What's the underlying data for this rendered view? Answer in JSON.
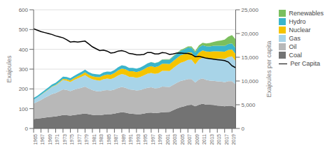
{
  "chart_data": {
    "type": "area",
    "stacked": true,
    "x": [
      1965,
      1966,
      1967,
      1968,
      1969,
      1970,
      1971,
      1972,
      1973,
      1974,
      1975,
      1976,
      1977,
      1978,
      1979,
      1980,
      1981,
      1982,
      1983,
      1984,
      1985,
      1986,
      1987,
      1988,
      1989,
      1990,
      1991,
      1992,
      1993,
      1994,
      1995,
      1996,
      1997,
      1998,
      1999,
      2000,
      2001,
      2002,
      2003,
      2004,
      2005,
      2006,
      2007,
      2008,
      2009,
      2010,
      2011,
      2012,
      2013,
      2014,
      2015,
      2016,
      2017,
      2018,
      2019,
      2020
    ],
    "series": [
      {
        "name": "Coal",
        "color": "#737373",
        "values": [
          48,
          50,
          52,
          55,
          57,
          59,
          61,
          64,
          68,
          67,
          65,
          68,
          71,
          73,
          76,
          72,
          69,
          67,
          67,
          70,
          72,
          72,
          75,
          79,
          82,
          80,
          76,
          74,
          72,
          72,
          75,
          79,
          80,
          78,
          79,
          82,
          83,
          84,
          93,
          101,
          108,
          112,
          118,
          120,
          112,
          120,
          125,
          120,
          120,
          119,
          116,
          115,
          112,
          115,
          115,
          105
        ]
      },
      {
        "name": "Oil",
        "color": "#b8b8b8",
        "values": [
          78,
          85,
          92,
          100,
          107,
          115,
          118,
          124,
          130,
          128,
          124,
          128,
          130,
          133,
          136,
          130,
          125,
          122,
          120,
          122,
          122,
          120,
          122,
          126,
          128,
          126,
          122,
          122,
          120,
          122,
          125,
          127,
          128,
          125,
          126,
          130,
          128,
          126,
          128,
          130,
          132,
          132,
          132,
          130,
          120,
          128,
          128,
          125,
          122,
          122,
          122,
          122,
          122,
          124,
          124,
          118
        ]
      },
      {
        "name": "Gas",
        "color": "#a8d4e8",
        "values": [
          20,
          22,
          25,
          28,
          32,
          36,
          39,
          43,
          47,
          47,
          46,
          49,
          52,
          55,
          58,
          56,
          55,
          55,
          55,
          57,
          58,
          58,
          60,
          63,
          65,
          65,
          63,
          64,
          64,
          66,
          68,
          71,
          73,
          73,
          75,
          79,
          80,
          80,
          84,
          88,
          92,
          94,
          97,
          98,
          92,
          100,
          105,
          108,
          110,
          112,
          115,
          116,
          118,
          122,
          125,
          118
        ]
      },
      {
        "name": "Nuclear",
        "color": "#f5c400",
        "values": [
          0,
          0,
          1,
          1,
          2,
          2,
          3,
          4,
          6,
          7,
          8,
          9,
          11,
          12,
          14,
          14,
          15,
          16,
          17,
          19,
          21,
          22,
          24,
          26,
          28,
          28,
          28,
          29,
          29,
          30,
          31,
          33,
          34,
          34,
          35,
          36,
          36,
          36,
          36,
          37,
          38,
          38,
          38,
          36,
          35,
          36,
          36,
          36,
          36,
          37,
          37,
          36,
          36,
          36,
          36,
          35
        ]
      },
      {
        "name": "Hydro",
        "color": "#3bb5cc",
        "values": [
          8,
          8,
          9,
          9,
          9,
          10,
          10,
          11,
          11,
          11,
          11,
          12,
          12,
          13,
          13,
          13,
          13,
          14,
          14,
          15,
          15,
          15,
          15,
          16,
          16,
          17,
          17,
          17,
          18,
          18,
          19,
          19,
          20,
          20,
          20,
          21,
          21,
          22,
          22,
          23,
          23,
          24,
          24,
          24,
          25,
          26,
          27,
          27,
          27,
          28,
          28,
          29,
          29,
          30,
          30,
          30
        ]
      },
      {
        "name": "Renewables",
        "color": "#7bbf5e",
        "values": [
          0,
          0,
          0,
          0,
          0,
          0,
          0,
          0,
          0,
          0,
          0,
          0,
          0,
          0,
          0,
          0,
          0,
          0,
          0,
          0,
          0,
          0,
          0,
          0,
          0,
          0,
          0,
          0,
          0,
          0,
          0,
          0,
          1,
          1,
          1,
          1,
          2,
          2,
          3,
          3,
          4,
          5,
          6,
          7,
          8,
          10,
          12,
          14,
          17,
          20,
          24,
          27,
          32,
          37,
          42,
          44
        ]
      },
      {
        "name": "Per Capita",
        "type": "line",
        "axis": "y2",
        "color": "#000000",
        "values": [
          21000,
          20700,
          20400,
          20200,
          20000,
          19800,
          19500,
          19300,
          19100,
          18700,
          18200,
          18300,
          18200,
          18300,
          18400,
          17800,
          17200,
          16800,
          16400,
          16500,
          16300,
          15900,
          16000,
          16300,
          16400,
          16200,
          15800,
          15700,
          15500,
          15500,
          15600,
          16000,
          16000,
          15700,
          15700,
          16000,
          15900,
          15600,
          15700,
          15900,
          15900,
          15800,
          15800,
          15600,
          15100,
          15200,
          15000,
          14800,
          14700,
          14600,
          14500,
          14400,
          14300,
          14000,
          13200,
          12800
        ]
      }
    ],
    "xlim": [
      1965,
      2020
    ],
    "xticks": [
      1965,
      1967,
      1969,
      1971,
      1973,
      1975,
      1977,
      1979,
      1981,
      1983,
      1985,
      1987,
      1989,
      1991,
      1993,
      1995,
      1997,
      1999,
      2001,
      2003,
      2005,
      2007,
      2009,
      2011,
      2013,
      2015,
      2017,
      2019
    ],
    "ylim": [
      0,
      600
    ],
    "yticks": [
      0,
      100,
      200,
      300,
      400,
      500,
      600
    ],
    "y2lim": [
      0,
      25000
    ],
    "y2ticks": [
      0,
      {
        "value": 5000,
        "label": "5,000"
      },
      {
        "value": 10000,
        "label": "10,000"
      },
      {
        "value": 15000,
        "label": "15,000"
      },
      {
        "value": 20000,
        "label": "20,000"
      },
      {
        "value": 25000,
        "label": "25,000"
      }
    ],
    "ylabel": "Exajoules",
    "y2label": "Exajoules per capita",
    "grid": true,
    "legend": "right"
  }
}
